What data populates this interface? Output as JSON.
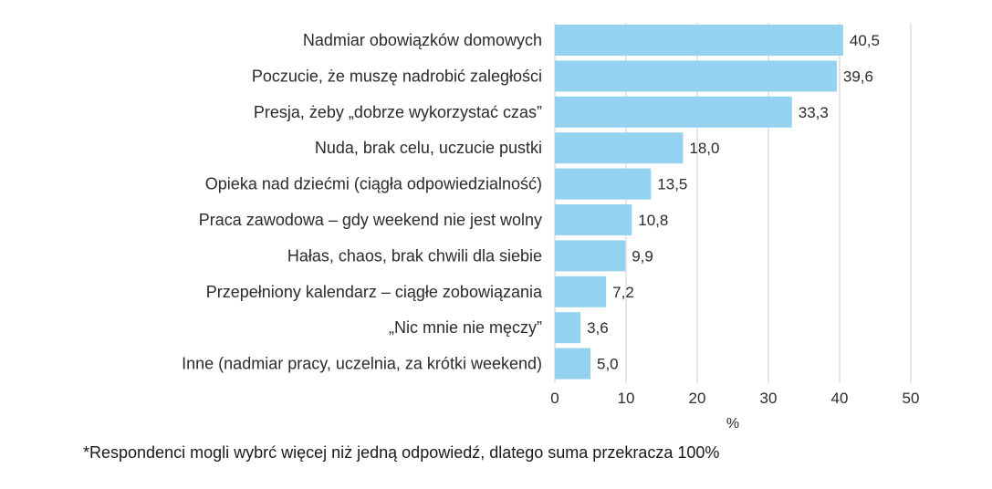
{
  "chart_data": {
    "type": "bar",
    "orientation": "horizontal",
    "title": "",
    "categories": [
      "Nadmiar obowiązków domowych",
      "Poczucie, że muszę nadrobić zaległości",
      "Presja, żeby „dobrze wykorzystać czas”",
      "Nuda, brak celu, uczucie pustki",
      "Opieka nad dziećmi (ciągła odpowiedzialność)",
      "Praca zawodowa – gdy weekend nie jest wolny",
      "Hałas, chaos, brak chwili dla siebie",
      "Przepełniony kalendarz – ciągłe zobowiązania",
      "„Nic mnie nie męczy”",
      "Inne (nadmiar pracy, uczelnia, za krótki weekend)"
    ],
    "values": [
      40.5,
      39.6,
      33.3,
      18.0,
      13.5,
      10.8,
      9.9,
      7.2,
      3.6,
      5.0
    ],
    "value_labels": [
      "40,5",
      "39,6",
      "33,3",
      "18,0",
      "13,5",
      "10,8",
      "9,9",
      "7,2",
      "3,6",
      "5,0"
    ],
    "xlabel": "%",
    "ylabel": "",
    "xlim": [
      0,
      50
    ],
    "xticks": [
      0,
      10,
      20,
      30,
      40,
      50
    ],
    "xtick_labels": [
      "0",
      "10",
      "20",
      "30",
      "40",
      "50"
    ],
    "grid": true,
    "bar_color": "#94d2f2",
    "grid_color": "#cfcfcf"
  },
  "footnote": "*Respondenci mogli wybrć więcej niż jedną odpowiedź, dlatego suma przekracza 100%"
}
